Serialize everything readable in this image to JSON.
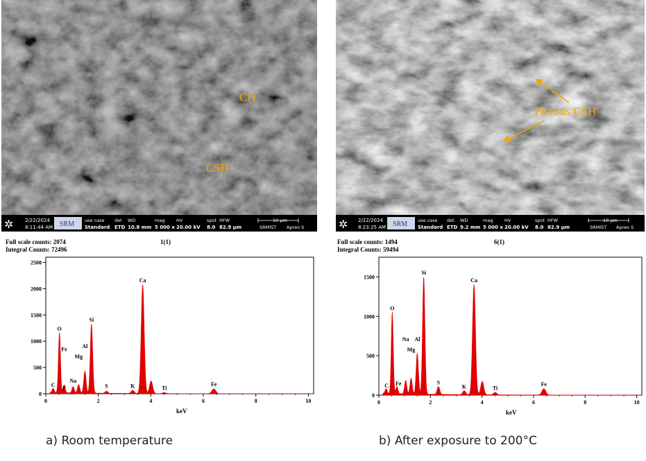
{
  "panels": [
    {
      "id": "a",
      "sem": {
        "annotations": [
          "CH",
          "CSH"
        ],
        "databar": {
          "date": "2/22/2024",
          "time": "8:11:44 AM",
          "logo": "SRM",
          "use_case_label": "use case",
          "use_case": "Standard",
          "det_label": "det",
          "det": "ETD",
          "wd_label": "WD",
          "wd": "10.8 mm",
          "mag_label": "mag",
          "mag": "5 000 x",
          "hv_label": "HV",
          "hv": "20.00 kV",
          "spot_label": "spot",
          "spot": "8.0",
          "hfw_label": "HFW",
          "hfw": "82.9 µm",
          "scale": "10 µm",
          "institution": "SRMIST",
          "instrument": "Apreo S"
        }
      },
      "chart_data": {
        "type": "line",
        "full_scale_counts": "Full scale counts: 2074",
        "integral_counts": "Integral Counts: 72496",
        "spectrum_label": "1(1)",
        "xlabel": "keV",
        "xlim": [
          0,
          10.2
        ],
        "ylim": [
          0,
          2600
        ],
        "x_ticks": [
          0,
          2,
          4,
          6,
          8,
          10
        ],
        "y_ticks": [
          0,
          500,
          1000,
          1500,
          2000,
          2500
        ],
        "peaks": [
          {
            "element": "C",
            "x": 0.28,
            "y": 80
          },
          {
            "element": "O",
            "x": 0.52,
            "y": 1150
          },
          {
            "element": "Fe",
            "x": 0.7,
            "y": 150
          },
          {
            "element": "Na",
            "x": 1.04,
            "y": 120
          },
          {
            "element": "Mg",
            "x": 1.25,
            "y": 160
          },
          {
            "element": "Al",
            "x": 1.49,
            "y": 420
          },
          {
            "element": "Si",
            "x": 1.74,
            "y": 1320
          },
          {
            "element": "S",
            "x": 2.31,
            "y": 40
          },
          {
            "element": "K",
            "x": 3.31,
            "y": 60
          },
          {
            "element": "Ca",
            "x": 3.69,
            "y": 2074
          },
          {
            "element": "Ca",
            "x": 4.01,
            "y": 240
          },
          {
            "element": "Ti",
            "x": 4.51,
            "y": 20
          },
          {
            "element": "Fe",
            "x": 6.4,
            "y": 90
          }
        ],
        "labels": [
          {
            "text": "C",
            "x": 0.28,
            "y": 80
          },
          {
            "text": "O",
            "x": 0.52,
            "y": 1150
          },
          {
            "text": "F",
            "x": 0.7,
            "y": 20
          },
          {
            "text": "Fe",
            "x": 0.7,
            "y": 760
          },
          {
            "text": "Na",
            "x": 1.04,
            "y": 160
          },
          {
            "text": "Mg",
            "x": 1.25,
            "y": 620
          },
          {
            "text": "Al",
            "x": 1.49,
            "y": 820
          },
          {
            "text": "Si",
            "x": 1.74,
            "y": 1320
          },
          {
            "text": "S",
            "x": 2.31,
            "y": 60
          },
          {
            "text": "K",
            "x": 3.31,
            "y": 60
          },
          {
            "text": "Ca",
            "x": 3.69,
            "y": 2074
          },
          {
            "text": "Ti",
            "x": 4.51,
            "y": 20
          },
          {
            "text": "Fe",
            "x": 6.4,
            "y": 90
          }
        ]
      },
      "caption": "a)    Room temperature"
    },
    {
      "id": "b",
      "sem": {
        "annotations": [
          "Fibrous CSH"
        ],
        "databar": {
          "date": "2/22/2024",
          "time": "8:23:25 AM",
          "logo": "SRM",
          "use_case_label": "use case",
          "use_case": "Standard",
          "det_label": "det",
          "det": "ETD",
          "wd_label": "WD",
          "wd": "9.2 mm",
          "mag_label": "mag",
          "mag": "5 000 x",
          "hv_label": "HV",
          "hv": "20.00 kV",
          "spot_label": "spot",
          "spot": "8.0",
          "hfw_label": "HFW",
          "hfw": "82.9 µm",
          "scale": "10 µm",
          "institution": "SRMIST",
          "instrument": "Apreo S"
        }
      },
      "chart_data": {
        "type": "line",
        "full_scale_counts": "Full scale counts: 1494",
        "integral_counts": "Integral Counts: 59494",
        "spectrum_label": "6(1)",
        "xlabel": "keV",
        "xlim": [
          0,
          10.2
        ],
        "ylim": [
          0,
          1750
        ],
        "x_ticks": [
          0,
          2,
          4,
          6,
          8,
          10
        ],
        "y_ticks": [
          0,
          500,
          1000,
          1500
        ],
        "peaks": [
          {
            "element": "C",
            "x": 0.28,
            "y": 60
          },
          {
            "element": "O",
            "x": 0.52,
            "y": 1040
          },
          {
            "element": "Fe",
            "x": 0.7,
            "y": 90
          },
          {
            "element": "Na",
            "x": 1.04,
            "y": 170
          },
          {
            "element": "Mg",
            "x": 1.25,
            "y": 200
          },
          {
            "element": "Al",
            "x": 1.49,
            "y": 520
          },
          {
            "element": "Si",
            "x": 1.74,
            "y": 1494
          },
          {
            "element": "S",
            "x": 2.31,
            "y": 100
          },
          {
            "element": "K",
            "x": 3.31,
            "y": 50
          },
          {
            "element": "Ca",
            "x": 3.69,
            "y": 1400
          },
          {
            "element": "Ca",
            "x": 4.01,
            "y": 170
          },
          {
            "element": "Ti",
            "x": 4.51,
            "y": 30
          },
          {
            "element": "Fe",
            "x": 6.4,
            "y": 80
          }
        ],
        "labels": [
          {
            "text": "C",
            "x": 0.3,
            "y": 60
          },
          {
            "text": "O",
            "x": 0.52,
            "y": 1040
          },
          {
            "text": "Fe",
            "x": 0.76,
            "y": 90
          },
          {
            "text": "Na",
            "x": 1.04,
            "y": 650
          },
          {
            "text": "Al",
            "x": 1.49,
            "y": 650
          },
          {
            "text": "Mg",
            "x": 1.25,
            "y": 520
          },
          {
            "text": "Si",
            "x": 1.74,
            "y": 1494
          },
          {
            "text": "Ca",
            "x": 3.69,
            "y": 1400
          },
          {
            "text": "S",
            "x": 2.31,
            "y": 100
          },
          {
            "text": "K",
            "x": 3.31,
            "y": 50
          },
          {
            "text": "Ti",
            "x": 4.51,
            "y": 30
          },
          {
            "text": "Fe",
            "x": 6.4,
            "y": 80
          }
        ]
      },
      "caption": "b)    After exposure to 200°C"
    }
  ],
  "colors": {
    "spectrum": "#e00000",
    "annotation": "#f0a800",
    "databar_bg": "#000000",
    "databar_text": "#ffffff",
    "logo_bg": "#cfd6e6"
  }
}
